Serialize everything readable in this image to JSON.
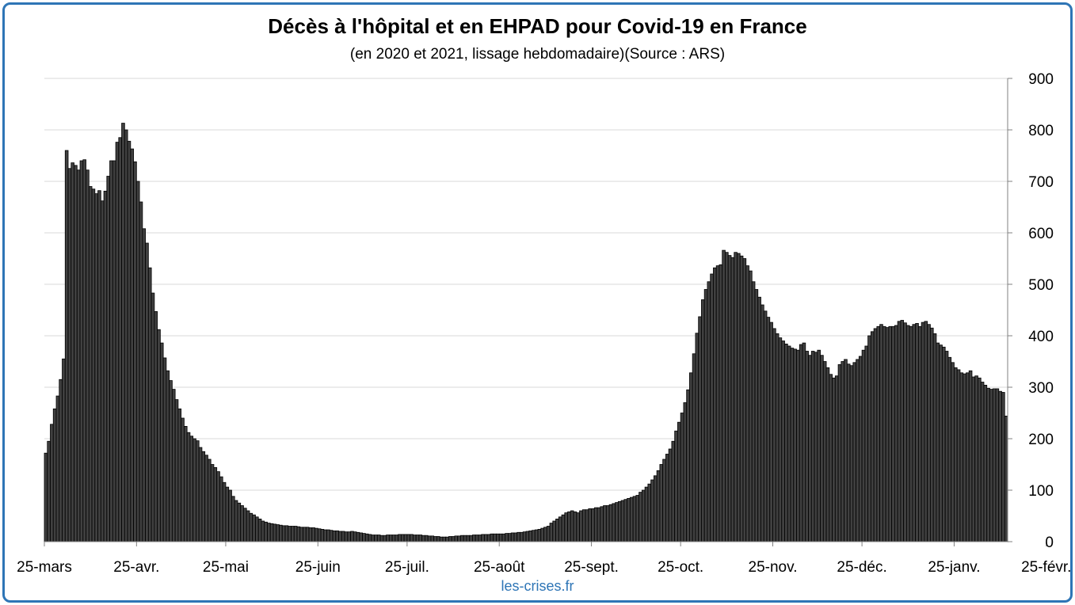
{
  "chart_data": {
    "type": "bar",
    "title": "Décès à l'hôpital et en EHPAD pour Covid-19 en France",
    "subtitle": "(en 2020 et 2021, lissage hebdomadaire)(Source : ARS)",
    "credit": "les-crises.fr",
    "y_axis_position": "right",
    "ylim": [
      0,
      900
    ],
    "y_ticks": [
      "0",
      "100",
      "200",
      "300",
      "400",
      "500",
      "600",
      "700",
      "800",
      "900"
    ],
    "x_ticks": [
      {
        "label": "25-mars",
        "day": 0
      },
      {
        "label": "25-avr.",
        "day": 31
      },
      {
        "label": "25-mai",
        "day": 61
      },
      {
        "label": "25-juin",
        "day": 92
      },
      {
        "label": "25-juil.",
        "day": 122
      },
      {
        "label": "25-août",
        "day": 153
      },
      {
        "label": "25-sept.",
        "day": 184
      },
      {
        "label": "25-oct.",
        "day": 214
      },
      {
        "label": "25-nov.",
        "day": 245
      },
      {
        "label": "25-déc.",
        "day": 275
      },
      {
        "label": "25-janv.",
        "day": 306
      },
      {
        "label": "25-févr.",
        "day": 337
      }
    ],
    "grid": true,
    "bar_color": "#404040",
    "values": [
      172,
      195,
      228,
      258,
      283,
      315,
      355,
      760,
      725,
      736,
      731,
      722,
      740,
      742,
      722,
      690,
      685,
      676,
      682,
      662,
      681,
      710,
      740,
      740,
      776,
      785,
      813,
      800,
      778,
      763,
      738,
      700,
      660,
      608,
      580,
      532,
      483,
      447,
      412,
      386,
      357,
      332,
      313,
      296,
      276,
      258,
      240,
      224,
      212,
      205,
      200,
      196,
      183,
      175,
      168,
      160,
      150,
      144,
      136,
      126,
      115,
      106,
      100,
      88,
      80,
      75,
      70,
      65,
      60,
      55,
      52,
      48,
      44,
      40,
      38,
      36,
      35,
      34,
      33,
      32,
      31,
      31,
      30,
      30,
      30,
      29,
      28,
      28,
      28,
      27,
      27,
      26,
      25,
      24,
      23,
      23,
      22,
      21,
      21,
      20,
      20,
      19,
      19,
      20,
      19,
      18,
      17,
      16,
      15,
      14,
      13,
      13,
      13,
      12,
      12,
      13,
      13,
      13,
      13,
      14,
      14,
      14,
      14,
      14,
      13,
      13,
      13,
      12,
      12,
      11,
      11,
      10,
      10,
      9,
      9,
      9,
      10,
      10,
      11,
      11,
      12,
      12,
      12,
      12,
      13,
      13,
      13,
      14,
      14,
      14,
      15,
      15,
      15,
      15,
      15,
      16,
      16,
      17,
      17,
      18,
      18,
      19,
      20,
      21,
      22,
      23,
      24,
      26,
      28,
      30,
      36,
      40,
      44,
      48,
      52,
      56,
      58,
      60,
      58,
      56,
      60,
      62,
      62,
      64,
      64,
      66,
      66,
      68,
      70,
      70,
      72,
      74,
      76,
      78,
      80,
      82,
      84,
      86,
      88,
      90,
      96,
      100,
      106,
      112,
      120,
      128,
      138,
      150,
      160,
      170,
      180,
      195,
      215,
      232,
      250,
      270,
      295,
      328,
      365,
      405,
      437,
      470,
      490,
      505,
      520,
      532,
      536,
      538,
      566,
      562,
      556,
      552,
      562,
      560,
      555,
      550,
      536,
      526,
      505,
      490,
      475,
      460,
      448,
      436,
      426,
      414,
      404,
      396,
      390,
      384,
      380,
      376,
      374,
      372,
      383,
      386,
      370,
      362,
      370,
      368,
      372,
      362,
      350,
      338,
      325,
      318,
      322,
      344,
      350,
      354,
      345,
      342,
      348,
      354,
      360,
      372,
      380,
      400,
      408,
      414,
      418,
      422,
      418,
      416,
      418,
      418,
      420,
      428,
      430,
      425,
      420,
      418,
      422,
      424,
      418,
      426,
      428,
      422,
      415,
      404,
      386,
      382,
      378,
      370,
      358,
      348,
      338,
      334,
      328,
      326,
      328,
      332,
      320,
      322,
      318,
      310,
      304,
      298,
      296,
      297,
      297,
      292,
      290,
      244
    ]
  }
}
